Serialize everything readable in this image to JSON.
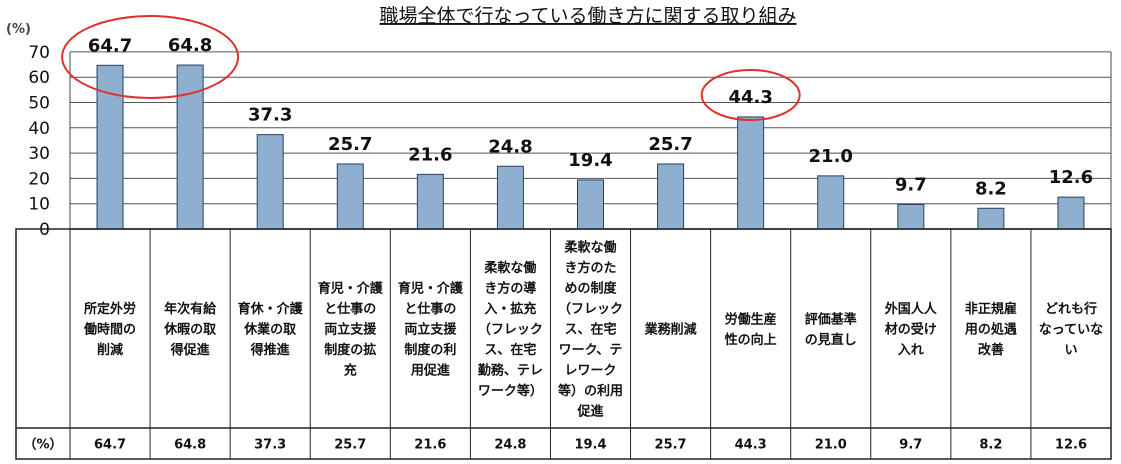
{
  "chart_data": {
    "type": "bar",
    "title": "職場全体で行なっている働き方に関する取り組み",
    "unit_label": "(%)",
    "table_row_label": "（%）",
    "ylim": [
      0,
      70
    ],
    "yticks": [
      0,
      10,
      20,
      30,
      40,
      50,
      60,
      70
    ],
    "grid": true,
    "bar_color": "#8fafd1",
    "highlight_color": "#e03030",
    "categories": [
      [
        "所定外労",
        "働時間の",
        "削減"
      ],
      [
        "年次有給",
        "休暇の取",
        "得促進"
      ],
      [
        "育休・介護",
        "休業の取",
        "得推進"
      ],
      [
        "育児・介護",
        "と仕事の",
        "両立支援",
        "制度の拡",
        "充"
      ],
      [
        "育児・介護",
        "と仕事の",
        "両立支援",
        "制度の利",
        "用促進"
      ],
      [
        "柔軟な働",
        "き方の導",
        "入・拡充",
        "（フレック",
        "ス、在宅",
        "勤務、テレ",
        "ワーク等）"
      ],
      [
        "柔軟な働",
        "き方のた",
        "めの制度",
        "（フレック",
        "ス、在宅",
        "ワーク、テ",
        "レワーク",
        "等）の利用",
        "促進"
      ],
      [
        "業務削減"
      ],
      [
        "労働生産",
        "性の向上"
      ],
      [
        "評価基準",
        "の見直し"
      ],
      [
        "外国人人",
        "材の受け",
        "入れ"
      ],
      [
        "非正規雇",
        "用の処遇",
        "改善"
      ],
      [
        "どれも行",
        "なっていな",
        "い"
      ]
    ],
    "values": [
      64.7,
      64.8,
      37.3,
      25.7,
      21.6,
      24.8,
      19.4,
      25.7,
      44.3,
      21.0,
      9.7,
      8.2,
      12.6
    ],
    "value_labels": [
      "64.7",
      "64.8",
      "37.3",
      "25.7",
      "21.6",
      "24.8",
      "19.4",
      "25.7",
      "44.3",
      "21.0",
      "9.7",
      "8.2",
      "12.6"
    ],
    "highlighted": [
      0,
      1,
      8
    ]
  }
}
